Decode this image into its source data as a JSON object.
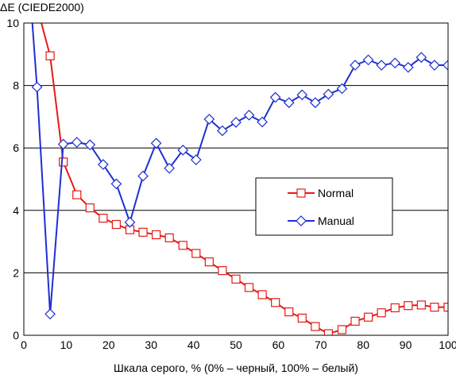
{
  "chart_data": {
    "type": "line",
    "ylabel": "ΔE (CIEDE2000)",
    "xlabel": "Шкала серого, % (0% – черный, 100% – белый)",
    "xlim": [
      0,
      100
    ],
    "ylim": [
      0,
      10
    ],
    "xticks": [
      "0",
      "10",
      "20",
      "30",
      "40",
      "50",
      "60",
      "70",
      "80",
      "90",
      "100"
    ],
    "yticks": [
      "0",
      "2",
      "4",
      "6",
      "8",
      "10"
    ],
    "grid": "horizontal",
    "legend_position": "center-right",
    "series": [
      {
        "name": "Normal",
        "color": "#e41b17",
        "marker": "square",
        "x": [
          1.2,
          6.2,
          9.3,
          12.5,
          15.6,
          18.7,
          21.8,
          25.0,
          28.1,
          31.2,
          34.3,
          37.5,
          40.6,
          43.7,
          46.8,
          50.0,
          53.1,
          56.2,
          59.3,
          62.5,
          65.6,
          68.7,
          71.8,
          75.0,
          78.1,
          81.2,
          84.3,
          87.5,
          90.6,
          93.7,
          96.8,
          100.0
        ],
        "y": [
          11.5,
          8.95,
          5.55,
          4.5,
          4.08,
          3.75,
          3.55,
          3.38,
          3.3,
          3.22,
          3.12,
          2.88,
          2.62,
          2.35,
          2.07,
          1.8,
          1.53,
          1.3,
          1.05,
          0.75,
          0.55,
          0.28,
          0.05,
          0.18,
          0.45,
          0.58,
          0.72,
          0.88,
          0.95,
          0.97,
          0.9,
          0.9
        ]
      },
      {
        "name": "Manual",
        "color": "#1f2fd1",
        "marker": "diamond",
        "x": [
          1.2,
          3.1,
          6.2,
          9.3,
          12.5,
          15.6,
          18.7,
          21.8,
          25.0,
          28.1,
          31.2,
          34.3,
          37.5,
          40.6,
          43.7,
          46.8,
          50.0,
          53.1,
          56.2,
          59.3,
          62.5,
          65.6,
          68.7,
          71.8,
          75.0,
          78.1,
          81.2,
          84.3,
          87.5,
          90.6,
          93.7,
          96.8,
          100.0
        ],
        "y": [
          11.5,
          7.95,
          0.68,
          6.12,
          6.18,
          6.1,
          5.47,
          4.85,
          3.62,
          5.1,
          6.15,
          5.35,
          5.93,
          5.62,
          6.92,
          6.55,
          6.82,
          7.05,
          6.83,
          7.62,
          7.45,
          7.7,
          7.45,
          7.72,
          7.9,
          8.65,
          8.82,
          8.65,
          8.72,
          8.58,
          8.9,
          8.65,
          8.65
        ]
      }
    ]
  }
}
